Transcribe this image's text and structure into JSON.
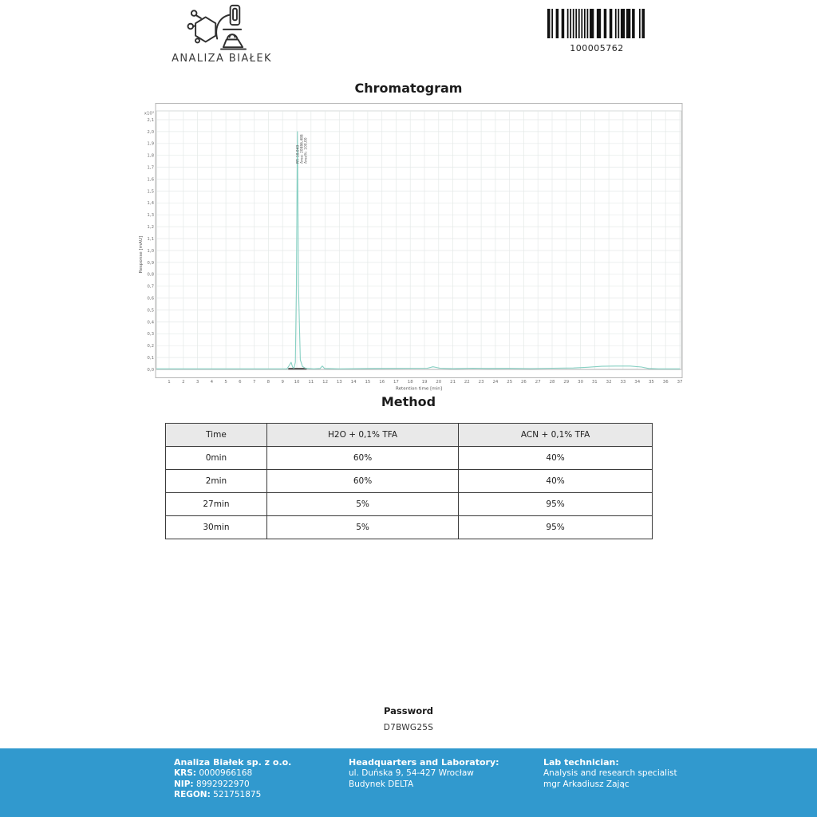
{
  "header": {
    "logo_text": "ANALIZA BIAŁEK",
    "barcode_value": "100005762"
  },
  "chromatogram": {
    "title": "Chromatogram",
    "peak_annotation": {
      "rt": "RT: 10,043",
      "area": "Area: 20886,488",
      "area_pct": "Area%: 100,00"
    }
  },
  "chart_data": {
    "type": "line",
    "title": "Chromatogram",
    "xlabel": "Retention time [min]",
    "ylabel": "Response [mAU]",
    "y_scale_label": "x10³",
    "xlim": [
      0,
      37
    ],
    "ylim_mau_thousands": [
      0.0,
      2.1
    ],
    "grid": true,
    "line_color": "#87d0c3",
    "x_ticks": [
      1,
      2,
      3,
      4,
      5,
      6,
      7,
      8,
      9,
      10,
      11,
      12,
      13,
      14,
      15,
      16,
      17,
      18,
      19,
      20,
      21,
      22,
      23,
      24,
      25,
      26,
      27,
      28,
      29,
      30,
      31,
      32,
      33,
      34,
      35,
      36,
      37
    ],
    "y_ticks": [
      "0,0",
      "0,1",
      "0,2",
      "0,3",
      "0,4",
      "0,5",
      "0,6",
      "0,7",
      "0,8",
      "0,9",
      "1,0",
      "1,1",
      "1,2",
      "1,3",
      "1,4",
      "1,5",
      "1,6",
      "1,7",
      "1,8",
      "1,9",
      "2,0",
      "2,1"
    ],
    "peak": {
      "rt": 10.043,
      "height_mau": 2000,
      "area": "20886,488",
      "area_percent": "100,00"
    },
    "integration_range_min": [
      9.4,
      10.7
    ],
    "points": [
      [
        0.1,
        5
      ],
      [
        9.3,
        5
      ],
      [
        9.45,
        30
      ],
      [
        9.6,
        60
      ],
      [
        9.7,
        20
      ],
      [
        9.8,
        10
      ],
      [
        9.9,
        60
      ],
      [
        9.97,
        700
      ],
      [
        10.043,
        2000
      ],
      [
        10.12,
        700
      ],
      [
        10.25,
        80
      ],
      [
        10.4,
        25
      ],
      [
        10.6,
        10
      ],
      [
        11.2,
        5
      ],
      [
        11.65,
        8
      ],
      [
        11.8,
        28
      ],
      [
        11.95,
        8
      ],
      [
        13,
        5
      ],
      [
        15.5,
        8
      ],
      [
        19.2,
        10
      ],
      [
        19.6,
        22
      ],
      [
        20.1,
        10
      ],
      [
        21,
        6
      ],
      [
        22.4,
        10
      ],
      [
        23.5,
        8
      ],
      [
        25,
        9
      ],
      [
        26.5,
        7
      ],
      [
        28,
        10
      ],
      [
        29.5,
        12
      ],
      [
        30.5,
        18
      ],
      [
        31.5,
        26
      ],
      [
        32.5,
        28
      ],
      [
        33.5,
        28
      ],
      [
        34.3,
        20
      ],
      [
        34.8,
        8
      ],
      [
        35.5,
        5
      ],
      [
        37,
        5
      ]
    ]
  },
  "method": {
    "title": "Method",
    "table": {
      "headers": [
        "Time",
        "H2O + 0,1% TFA",
        "ACN + 0,1% TFA"
      ],
      "rows": [
        [
          "0min",
          "60%",
          "40%"
        ],
        [
          "2min",
          "60%",
          "40%"
        ],
        [
          "27min",
          "5%",
          "95%"
        ],
        [
          "30min",
          "5%",
          "95%"
        ]
      ]
    }
  },
  "password": {
    "label": "Password",
    "value": "D7BWG25S"
  },
  "footer": {
    "bg_color": "#3199ce",
    "company": {
      "name": "Analiza Białek sp. z o.o.",
      "krs_label": "KRS:",
      "krs": "0000966168",
      "nip_label": "NIP:",
      "nip": "8992922970",
      "regon_label": "REGON:",
      "regon": "521751875"
    },
    "headquarters": {
      "title": "Headquarters and Laboratory:",
      "line1": "ul. Duńska 9, 54-427 Wrocław",
      "line2": "Budynek DELTA"
    },
    "technician": {
      "title": "Lab technician:",
      "line1": "Analysis and research specialist",
      "line2": "mgr Arkadiusz Zając"
    }
  }
}
